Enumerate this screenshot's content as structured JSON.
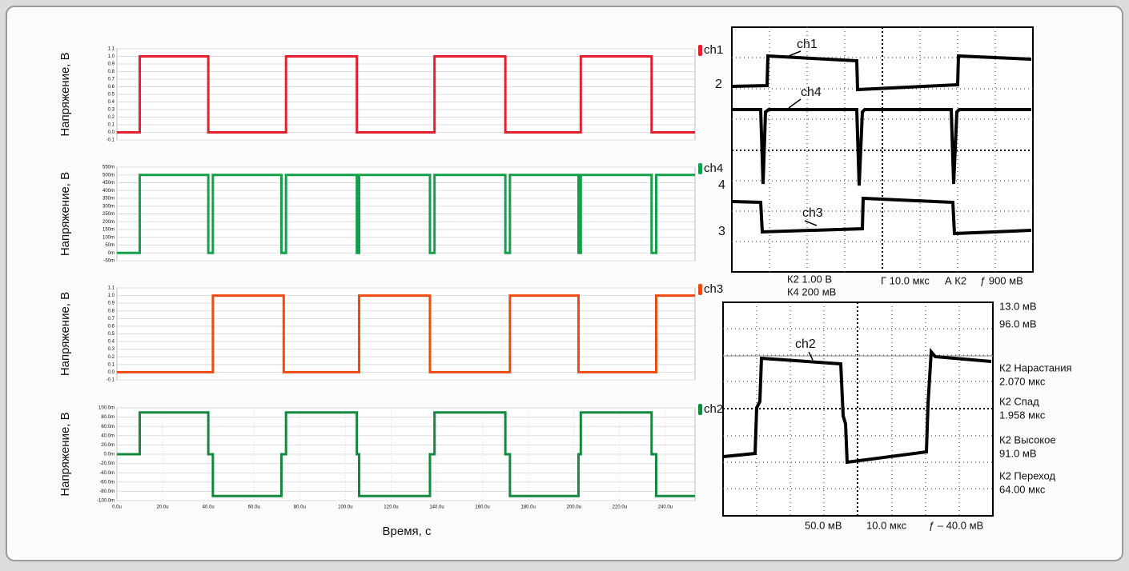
{
  "chart_data": [
    {
      "type": "line",
      "ylabel": "Напряжение, В",
      "grid": true,
      "x": [
        0,
        1e-05,
        1e-05,
        4e-05,
        4e-05,
        7.4e-05,
        7.4e-05,
        0.000105,
        0.000105,
        0.000139,
        0.000139,
        0.00017,
        0.00017,
        0.000203,
        0.000203,
        0.000234,
        0.000234,
        0.000253
      ],
      "series": [
        {
          "name": "ch1",
          "color": "#e3202b",
          "values": [
            0,
            0,
            1,
            1,
            0,
            0,
            1,
            1,
            0,
            0,
            1,
            1,
            0,
            0,
            1,
            1,
            0,
            0
          ]
        }
      ],
      "xlim": [
        0,
        0.000253
      ],
      "ylim": [
        -0.1,
        1.1
      ],
      "yticks": [
        -0.1,
        {
          "value": 0,
          "label": "0.0"
        },
        0.1,
        0.2,
        0.3,
        0.4,
        0.5,
        0.6,
        0.7,
        0.8,
        0.9,
        {
          "value": 1,
          "label": "1.0"
        },
        1.1
      ]
    },
    {
      "type": "line",
      "ylabel": "Напряжение, В",
      "grid": true,
      "x": [
        0,
        1e-05,
        1e-05,
        4e-05,
        4e-05,
        4.2e-05,
        4.2e-05,
        7.2e-05,
        7.2e-05,
        7.4e-05,
        7.4e-05,
        0.000105,
        0.000105,
        0.000106,
        0.000106,
        0.000137,
        0.000137,
        0.000139,
        0.000139,
        0.00017,
        0.00017,
        0.000172,
        0.000172,
        0.000202,
        0.000202,
        0.000203,
        0.000203,
        0.000234,
        0.000234,
        0.000236,
        0.000236,
        0.000253
      ],
      "series": [
        {
          "name": "ch4",
          "color": "#14a04a",
          "values": [
            0,
            0,
            0.5,
            0.5,
            0,
            0,
            0.5,
            0.5,
            0,
            0,
            0.5,
            0.5,
            0,
            0,
            0.5,
            0.5,
            0,
            0,
            0.5,
            0.5,
            0,
            0,
            0.5,
            0.5,
            0,
            0,
            0.5,
            0.5,
            0,
            0,
            0.5,
            0.5
          ]
        }
      ],
      "xlim": [
        0,
        0.000253
      ],
      "ylim": [
        -0.05,
        0.55
      ],
      "yticks": [
        {
          "value": -0.05,
          "label": "-50m"
        },
        {
          "value": 0,
          "label": "0m"
        },
        {
          "value": 0.05,
          "label": "50m"
        },
        {
          "value": 0.1,
          "label": "100m"
        },
        {
          "value": 0.15,
          "label": "150m"
        },
        {
          "value": 0.2,
          "label": "200m"
        },
        {
          "value": 0.25,
          "label": "250m"
        },
        {
          "value": 0.3,
          "label": "300m"
        },
        {
          "value": 0.35,
          "label": "350m"
        },
        {
          "value": 0.4,
          "label": "400m"
        },
        {
          "value": 0.45,
          "label": "450m"
        },
        {
          "value": 0.5,
          "label": "500m"
        },
        {
          "value": 0.55,
          "label": "550m"
        }
      ]
    },
    {
      "type": "line",
      "ylabel": "Напряжение, В",
      "grid": true,
      "x": [
        0,
        4.2e-05,
        4.2e-05,
        7.3e-05,
        7.3e-05,
        0.000106,
        0.000106,
        0.000137,
        0.000137,
        0.000172,
        0.000172,
        0.000202,
        0.000202,
        0.000236,
        0.000236,
        0.000253
      ],
      "series": [
        {
          "name": "ch3",
          "color": "#f04a10",
          "values": [
            0,
            0,
            1,
            1,
            0,
            0,
            1,
            1,
            0,
            0,
            1,
            1,
            0,
            0,
            1,
            1
          ]
        }
      ],
      "xlim": [
        0,
        0.000253
      ],
      "ylim": [
        -0.1,
        1.1
      ],
      "yticks": [
        -0.1,
        {
          "value": 0,
          "label": "0.0"
        },
        0.1,
        0.2,
        0.3,
        0.4,
        0.5,
        0.6,
        0.7,
        0.8,
        0.9,
        {
          "value": 1,
          "label": "1.0"
        },
        1.1
      ]
    },
    {
      "type": "line",
      "ylabel": "Напряжение, В",
      "xlabel": "Время, с",
      "grid": true,
      "x": [
        0,
        1e-05,
        1e-05,
        4e-05,
        4e-05,
        4.2e-05,
        4.2e-05,
        7.2e-05,
        7.2e-05,
        7.4e-05,
        7.4e-05,
        0.000105,
        0.000105,
        0.000106,
        0.000106,
        0.000137,
        0.000137,
        0.000139,
        0.000139,
        0.00017,
        0.00017,
        0.000172,
        0.000172,
        0.000202,
        0.000202,
        0.000203,
        0.000203,
        0.000234,
        0.000234,
        0.000236,
        0.000236,
        0.000253
      ],
      "series": [
        {
          "name": "ch2",
          "color": "#128a3e",
          "values": [
            0,
            0,
            0.09,
            0.09,
            0,
            0,
            -0.09,
            -0.09,
            0,
            0,
            0.09,
            0.09,
            0,
            0,
            -0.09,
            -0.09,
            0,
            0,
            0.09,
            0.09,
            0,
            0,
            -0.09,
            -0.09,
            0,
            0,
            0.09,
            0.09,
            0,
            0,
            -0.09,
            -0.09
          ]
        }
      ],
      "xlim": [
        0,
        0.000253
      ],
      "ylim": [
        -0.1,
        0.1
      ],
      "xticks": [
        {
          "value": 0,
          "label": "0.0u"
        },
        {
          "value": 2e-05,
          "label": "20.0u"
        },
        {
          "value": 4e-05,
          "label": "40.0u"
        },
        {
          "value": 6e-05,
          "label": "60.0u"
        },
        {
          "value": 8e-05,
          "label": "80.0u"
        },
        {
          "value": 0.0001,
          "label": "100.0u"
        },
        {
          "value": 0.00012,
          "label": "120.0u"
        },
        {
          "value": 0.00014,
          "label": "140.0u"
        },
        {
          "value": 0.00016,
          "label": "160.0u"
        },
        {
          "value": 0.00018,
          "label": "180.0u"
        },
        {
          "value": 0.0002,
          "label": "200.0u"
        },
        {
          "value": 0.00022,
          "label": "220.0u"
        },
        {
          "value": 0.00024,
          "label": "240.0u"
        }
      ],
      "yticks": [
        {
          "value": -0.1,
          "label": "-100.0m"
        },
        {
          "value": -0.08,
          "label": "-80.0m"
        },
        {
          "value": -0.06,
          "label": "-60.0m"
        },
        {
          "value": -0.04,
          "label": "-40.0m"
        },
        {
          "value": -0.02,
          "label": "-20.0m"
        },
        {
          "value": 0,
          "label": "0.0m"
        },
        {
          "value": 0.02,
          "label": "20.0m"
        },
        {
          "value": 0.04,
          "label": "40.0m"
        },
        {
          "value": 0.06,
          "label": "60.0m"
        },
        {
          "value": 0.08,
          "label": "80.0m"
        },
        {
          "value": 0.1,
          "label": "100.0m"
        }
      ]
    }
  ],
  "scope_top": {
    "traces": [
      "ch1",
      "ch4",
      "ch3"
    ],
    "markers": [
      "2",
      "4",
      "3"
    ],
    "readout": [
      "К2  1.00 В",
      "К4  200 мВ",
      "Г 10.0 мкс",
      "А  К2",
      "ƒ 900 мВ"
    ]
  },
  "scope_bottom": {
    "trace": "ch2",
    "measurements": [
      "13.0 мВ",
      "96.0 мВ",
      "К2 Нарастания",
      "2.070 мкс",
      "К2 Спад",
      "1.958 мкс",
      "К2 Высокое",
      "91.0 мВ",
      "К2 Переход",
      "64.00 мкс"
    ],
    "readout": [
      "50.0 мВ",
      "10.0 мкс",
      "ƒ – 40.0 мВ"
    ]
  }
}
